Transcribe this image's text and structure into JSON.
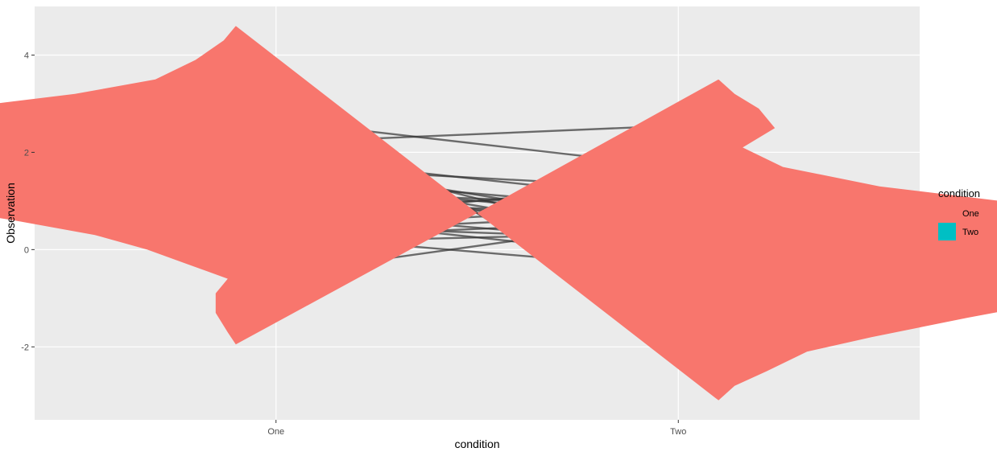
{
  "chart_data": {
    "type": "violin",
    "title": "",
    "xlabel": "condition",
    "ylabel": "Observation",
    "categories": [
      "One",
      "Two"
    ],
    "ylim": [
      -3.5,
      5.0
    ],
    "yticks": [
      -2,
      0,
      2,
      4
    ],
    "y_tick_labels": [
      "-2",
      "0",
      "2",
      "4"
    ],
    "grid": true,
    "legend": {
      "title": "condition",
      "position": "right",
      "entries": [
        {
          "label": "One",
          "color": "#F8766D"
        },
        {
          "label": "Two",
          "color": "#00BFC4"
        }
      ]
    },
    "colors": {
      "panel": "#EBEBEB",
      "violin_fill": "#F8766D",
      "line": "#333333",
      "violin_one": "#F8766D",
      "violin_two": "#00BFC4"
    },
    "violins": [
      {
        "name": "One",
        "category": "One",
        "y_min": -1.95,
        "y_max": 4.6,
        "anchor_x": 0.9,
        "profile": [
          [
            -1.95,
            0.0
          ],
          [
            -1.7,
            0.02
          ],
          [
            -1.3,
            0.05
          ],
          [
            -0.9,
            0.05
          ],
          [
            -0.6,
            0.02
          ],
          [
            -0.3,
            0.12
          ],
          [
            0.0,
            0.22
          ],
          [
            0.3,
            0.35
          ],
          [
            0.6,
            0.55
          ],
          [
            0.9,
            0.78
          ],
          [
            1.2,
            0.99
          ],
          [
            1.6,
            1.18
          ],
          [
            2.0,
            1.4
          ],
          [
            2.3,
            1.44
          ],
          [
            2.6,
            1.1
          ],
          [
            2.9,
            0.7
          ],
          [
            3.2,
            0.4
          ],
          [
            3.5,
            0.2
          ],
          [
            3.9,
            0.1
          ],
          [
            4.3,
            0.03
          ],
          [
            4.6,
            0.0
          ]
        ]
      },
      {
        "name": "Two",
        "category": "Two",
        "y_min": -3.1,
        "y_max": 3.5,
        "anchor_x": 2.1,
        "profile": [
          [
            -3.1,
            0.0
          ],
          [
            -2.8,
            0.04
          ],
          [
            -2.5,
            0.12
          ],
          [
            -2.1,
            0.22
          ],
          [
            -1.8,
            0.38
          ],
          [
            -1.4,
            0.62
          ],
          [
            -1.0,
            0.88
          ],
          [
            -0.6,
            1.17
          ],
          [
            -0.3,
            1.38
          ],
          [
            0.0,
            1.56
          ],
          [
            0.15,
            1.66
          ],
          [
            0.3,
            1.45
          ],
          [
            0.6,
            1.02
          ],
          [
            1.0,
            0.7
          ],
          [
            1.3,
            0.4
          ],
          [
            1.7,
            0.16
          ],
          [
            2.1,
            0.06
          ],
          [
            2.5,
            0.14
          ],
          [
            2.9,
            0.1
          ],
          [
            3.2,
            0.04
          ],
          [
            3.5,
            0.0
          ]
        ]
      }
    ],
    "paired_lines": [
      {
        "one": 3.3,
        "two": -1.8
      },
      {
        "one": 2.2,
        "two": 2.55
      },
      {
        "one": 2.65,
        "two": 1.7
      },
      {
        "one": 2.1,
        "two": 0.0
      },
      {
        "one": 2.0,
        "two": -0.5
      },
      {
        "one": 1.9,
        "two": 1.0
      },
      {
        "one": 1.8,
        "two": 0.45
      },
      {
        "one": 1.7,
        "two": 1.25
      },
      {
        "one": 1.6,
        "two": 0.2
      },
      {
        "one": 1.5,
        "two": 0.8
      },
      {
        "one": 1.4,
        "two": 0.6
      },
      {
        "one": 1.3,
        "two": 0.3
      },
      {
        "one": 1.2,
        "two": 0.9
      },
      {
        "one": 1.15,
        "two": 0.5
      },
      {
        "one": 1.1,
        "two": 0.4
      },
      {
        "one": 1.0,
        "two": 0.7
      },
      {
        "one": 0.9,
        "two": 1.1
      },
      {
        "one": 0.8,
        "two": 0.1
      },
      {
        "one": 0.7,
        "two": -0.2
      },
      {
        "one": 0.6,
        "two": 1.4
      },
      {
        "one": 0.5,
        "two": 0.2
      },
      {
        "one": 0.45,
        "two": 0.9
      },
      {
        "one": 0.35,
        "two": 0.75
      },
      {
        "one": 0.3,
        "two": -0.4
      },
      {
        "one": 0.25,
        "two": 0.6
      },
      {
        "one": 0.15,
        "two": 0.35
      },
      {
        "one": -0.5,
        "two": 0.65
      }
    ]
  }
}
